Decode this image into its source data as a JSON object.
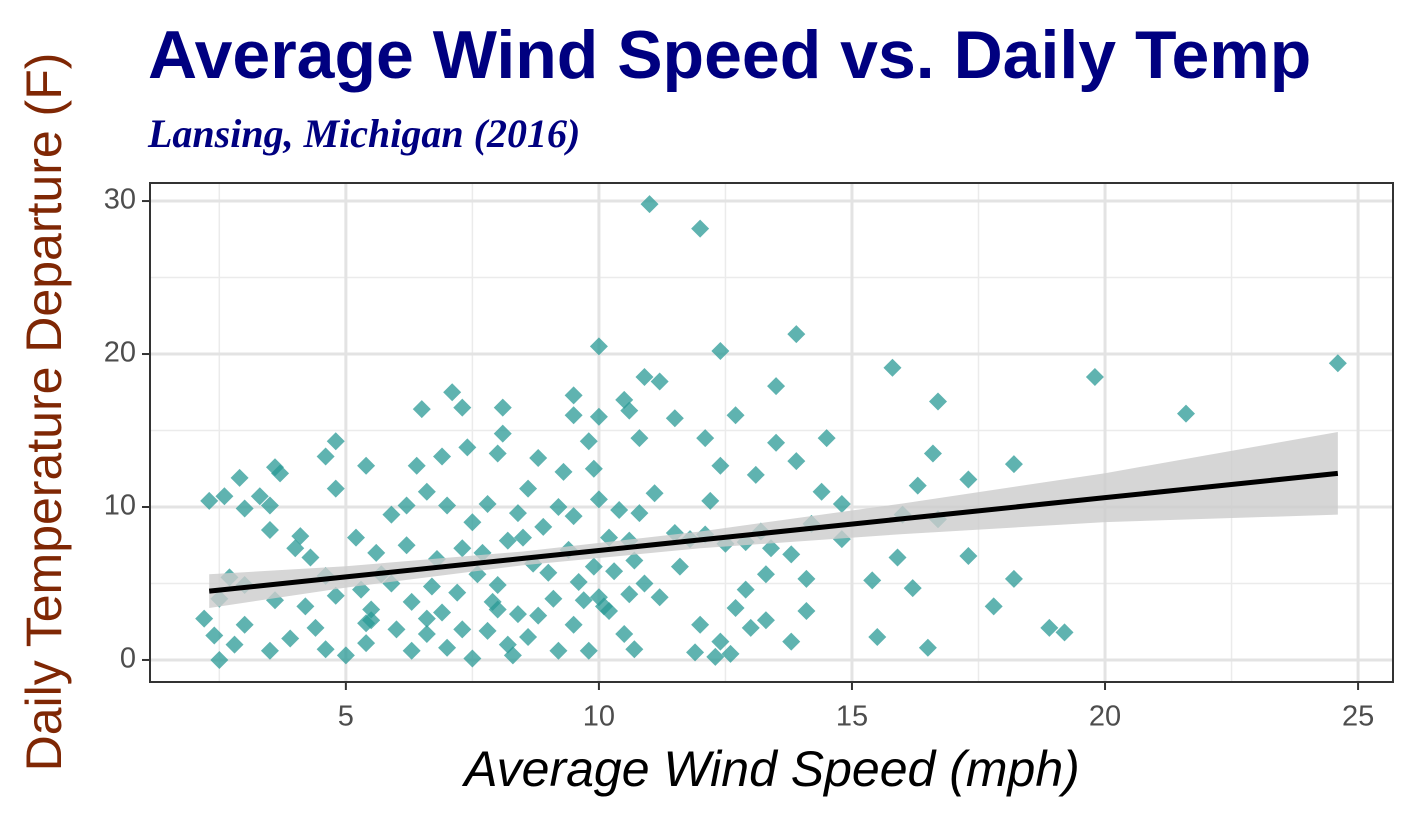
{
  "chart_data": {
    "type": "scatter",
    "title": "Average Wind Speed vs. Daily Temp",
    "subtitle": "Lansing, Michigan (2016)",
    "x_label": "Average Wind Speed (mph)",
    "y_label": "Daily Temperature Departure (F)",
    "color": "#2a9a96",
    "xlim": [
      1.13,
      25.69
    ],
    "ylim": [
      -1.44,
      31.18
    ],
    "xticks": [
      5,
      10,
      15,
      20,
      25
    ],
    "yticks": [
      0,
      10,
      20,
      30
    ],
    "x_minor_grid": [
      2.5,
      7.5,
      12.5,
      17.5,
      22.5
    ],
    "y_minor_grid": [
      5,
      15,
      25
    ],
    "grid": true,
    "x": [
      11,
      12,
      24.6,
      21.6,
      19.8,
      15.8,
      13.9,
      10,
      12.4,
      16.7,
      18.2,
      17.3,
      16.6,
      19.2,
      18.9,
      17.8,
      18.2,
      17.3,
      16.5,
      16.2,
      15.4,
      15.5,
      16.0,
      15.9,
      16.7,
      16.3,
      14.5,
      14.4,
      14.8,
      13.9,
      13.5,
      13.5,
      12.7,
      12.1,
      12.4,
      12.2,
      13.1,
      11.5,
      11.2,
      10.9,
      10.5,
      10.6,
      10.8,
      11.1,
      11.2,
      12.3,
      12.4,
      12.6,
      11.9,
      12.0,
      12.7,
      12.9,
      13.3,
      13.0,
      13.3,
      13.8,
      14.1,
      14.1,
      13.8,
      13.4,
      13.2,
      14.2,
      14.8,
      12.5,
      12.1,
      11.5,
      10.8,
      10.4,
      10.2,
      10.7,
      10.6,
      10.2,
      10.0,
      9.9,
      9.5,
      9.3,
      9.5,
      9.5,
      10.0,
      9.8,
      9.9,
      10.0,
      9.2,
      8.8,
      8.6,
      8.1,
      8.1,
      8.0,
      7.3,
      7.1,
      6.5,
      7.4,
      6.9,
      6.4,
      5.4,
      4.8,
      4.6,
      4.8,
      3.6,
      3.7,
      2.9,
      2.3,
      2.6,
      3.3,
      3.5,
      3.0,
      3.5,
      4.1,
      4.0,
      4.3,
      4.6,
      5.2,
      5.6,
      5.9,
      6.2,
      6.6,
      7.0,
      7.5,
      7.8,
      8.4,
      8.9,
      8.5,
      8.2,
      7.7,
      7.3,
      6.8,
      6.2,
      5.7,
      5.3,
      4.8,
      4.2,
      3.6,
      3.0,
      2.7,
      2.5,
      2.2,
      2.4,
      2.5,
      2.8,
      3.0,
      3.5,
      3.9,
      4.4,
      4.6,
      5.0,
      5.4,
      5.5,
      5.5,
      6.0,
      6.3,
      6.6,
      6.9,
      7.0,
      7.3,
      7.5,
      7.8,
      8.0,
      8.2,
      8.3,
      8.6,
      8.8,
      9.1,
      9.2,
      9.5,
      9.8,
      10.1,
      10.5,
      10.7,
      10.9,
      9.7,
      9.0,
      8.7,
      8.0,
      7.6,
      7.2,
      6.7,
      6.3,
      5.9,
      5.4,
      6.6,
      7.9,
      8.4,
      9.4,
      9.6,
      10.3,
      10.6,
      11.6,
      11.8,
      12.9
    ],
    "values": [
      29.8,
      28.2,
      19.4,
      16.1,
      18.5,
      19.1,
      21.3,
      20.5,
      20.2,
      16.9,
      12.8,
      11.8,
      13.5,
      1.8,
      2.1,
      3.5,
      5.3,
      6.8,
      0.8,
      4.7,
      5.2,
      1.5,
      9.5,
      6.7,
      9.2,
      11.4,
      14.5,
      11,
      10.2,
      13,
      14.2,
      17.9,
      16,
      14.5,
      12.7,
      10.4,
      12.1,
      15.8,
      18.2,
      18.5,
      17,
      16.3,
      14.5,
      10.9,
      4.1,
      0.2,
      1.2,
      0.4,
      0.5,
      2.3,
      3.4,
      4.6,
      5.6,
      2.1,
      2.6,
      1.2,
      3.2,
      5.3,
      6.9,
      7.3,
      8.4,
      8.9,
      7.9,
      7.6,
      8.2,
      8.3,
      9.6,
      9.8,
      8.0,
      6.5,
      4.3,
      3.2,
      4.1,
      6.1,
      9.4,
      12.3,
      17.3,
      16,
      15.9,
      14.3,
      12.5,
      10.5,
      10,
      13.2,
      11.2,
      14.8,
      16.5,
      13.5,
      16.5,
      17.5,
      16.4,
      13.9,
      13.3,
      12.7,
      12.7,
      14.3,
      13.3,
      11.2,
      12.6,
      12.2,
      11.9,
      10.4,
      10.7,
      10.7,
      10.1,
      9.9,
      8.5,
      8.1,
      7.3,
      6.7,
      5.5,
      8.0,
      7.0,
      9.5,
      10.1,
      11.0,
      10.1,
      9.0,
      10.2,
      9.6,
      8.7,
      8.0,
      7.8,
      7.0,
      7.3,
      6.6,
      7.5,
      5.6,
      4.6,
      4.2,
      3.5,
      3.9,
      4.9,
      5.4,
      4.0,
      2.7,
      1.6,
      0.0,
      1.0,
      2.3,
      0.6,
      1.4,
      2.1,
      0.7,
      0.3,
      1.1,
      2.6,
      3.3,
      2.0,
      0.6,
      1.7,
      3.1,
      0.8,
      2.0,
      0.1,
      1.9,
      3.3,
      1.0,
      0.3,
      1.5,
      2.9,
      4.0,
      0.6,
      2.3,
      0.6,
      3.5,
      1.7,
      0.7,
      5.0,
      3.9,
      5.7,
      6.3,
      4.9,
      5.6,
      4.4,
      4.8,
      3.8,
      5.0,
      2.4,
      2.7,
      3.8,
      3.0,
      7.2,
      5.1,
      5.8,
      7.8,
      6.1,
      7.9,
      7.7
    ],
    "fit": {
      "color": "#000000",
      "band_color": "#cccccc",
      "x": [
        2.3,
        5,
        8.5,
        12,
        16,
        20,
        24.6
      ],
      "y": [
        4.5,
        5.43,
        6.64,
        7.85,
        9.23,
        10.61,
        12.2
      ],
      "lower": [
        3.4,
        4.73,
        6.19,
        7.3,
        8.23,
        9.01,
        9.5
      ],
      "upper": [
        5.6,
        6.13,
        7.09,
        8.4,
        10.23,
        12.21,
        14.9
      ]
    }
  }
}
